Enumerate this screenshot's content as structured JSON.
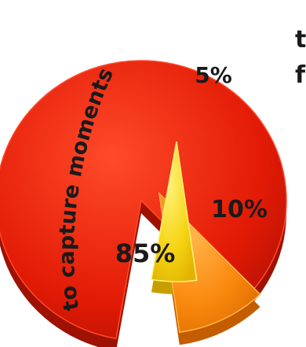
{
  "chart_data": {
    "type": "pie",
    "slices": [
      {
        "label": "to capture moments",
        "value": 85,
        "value_label": "85%",
        "color": "#e21a05",
        "color_light": "#ff4a2a",
        "color_dark": "#9e1103"
      },
      {
        "label": "",
        "value": 10,
        "value_label": "10%",
        "color": "#fb8a10",
        "color_light": "#ffb44a",
        "color_dark": "#c45c00"
      },
      {
        "label": "",
        "value": 5,
        "value_label": "5%",
        "color": "#f6d414",
        "color_light": "#fff27a",
        "color_dark": "#c79d00"
      }
    ],
    "right_edge_text": [
      "t",
      "f"
    ]
  }
}
